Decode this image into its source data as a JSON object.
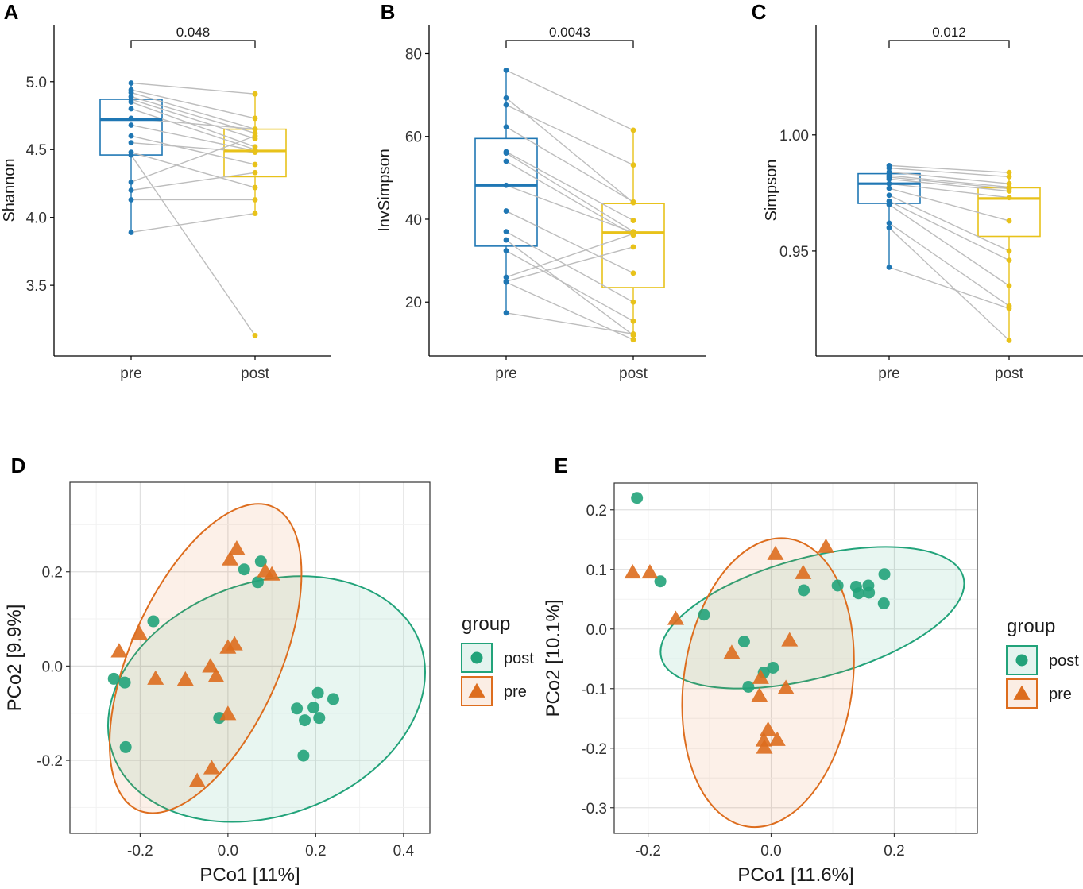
{
  "colors": {
    "pre": "#1f77b4",
    "post": "#e8c21a",
    "ord_post": "#22a37a",
    "ord_pre": "#dd6d1e",
    "paired_line": "#bdbdbd",
    "grid": "#e5e5e5"
  },
  "legend": {
    "title": "group",
    "items": [
      {
        "label": "post",
        "shape": "circle"
      },
      {
        "label": "pre",
        "shape": "triangle"
      }
    ]
  },
  "chart_data": [
    {
      "panel": "A",
      "type": "box",
      "ylabel": "Shannon",
      "ylim": [
        2.98,
        5.42
      ],
      "yticks": [
        3.5,
        4.0,
        4.5,
        5.0
      ],
      "ytick_labels": [
        "3.5",
        "4.0",
        "4.5",
        "5.0"
      ],
      "categories": [
        "pre",
        "post"
      ],
      "p_value": "0.048",
      "box": {
        "pre": {
          "q1": 4.46,
          "median": 4.72,
          "q3": 4.87,
          "whisker_low": 3.89,
          "whisker_high": 4.99
        },
        "post": {
          "q1": 4.3,
          "median": 4.49,
          "q3": 4.65,
          "whisker_low": 4.03,
          "whisker_high": 4.91
        }
      },
      "pairs": [
        [
          4.99,
          4.91
        ],
        [
          4.94,
          4.73
        ],
        [
          4.92,
          4.65
        ],
        [
          4.89,
          4.62
        ],
        [
          4.87,
          4.58
        ],
        [
          4.85,
          4.52
        ],
        [
          4.8,
          4.5
        ],
        [
          4.73,
          4.65
        ],
        [
          4.68,
          4.49
        ],
        [
          4.6,
          4.39
        ],
        [
          4.55,
          4.48
        ],
        [
          4.48,
          4.22
        ],
        [
          4.46,
          3.13
        ],
        [
          4.26,
          4.6
        ],
        [
          4.2,
          4.33
        ],
        [
          4.13,
          4.13
        ],
        [
          3.89,
          4.03
        ]
      ]
    },
    {
      "panel": "B",
      "type": "box",
      "ylabel": "InvSimpson",
      "ylim": [
        7,
        87
      ],
      "yticks": [
        20,
        40,
        60,
        80
      ],
      "ytick_labels": [
        "20",
        "40",
        "60",
        "80"
      ],
      "categories": [
        "pre",
        "post"
      ],
      "p_value": "0.0043",
      "box": {
        "pre": {
          "q1": 33.5,
          "median": 48.2,
          "q3": 59.5,
          "whisker_low": 17.4,
          "whisker_high": 76.0
        },
        "post": {
          "q1": 23.5,
          "median": 36.8,
          "q3": 43.8,
          "whisker_low": 10.9,
          "whisker_high": 61.5
        }
      },
      "pairs": [
        [
          76.0,
          61.5
        ],
        [
          69.3,
          44.0
        ],
        [
          67.6,
          53.1
        ],
        [
          62.3,
          44.2
        ],
        [
          56.3,
          39.7
        ],
        [
          56.0,
          37.0
        ],
        [
          54.0,
          36.2
        ],
        [
          48.2,
          36.8
        ],
        [
          42.0,
          27.0
        ],
        [
          37.0,
          20.0
        ],
        [
          35.0,
          12.0
        ],
        [
          32.4,
          15.4
        ],
        [
          26.0,
          36.5
        ],
        [
          25.0,
          33.3
        ],
        [
          24.8,
          10.9
        ],
        [
          17.4,
          12.3
        ]
      ]
    },
    {
      "panel": "C",
      "type": "box",
      "ylabel": "Simpson",
      "ylim": [
        0.9048,
        1.0475
      ],
      "yticks": [
        0.95,
        1.0
      ],
      "ytick_labels": [
        "0.95",
        "1.00"
      ],
      "categories": [
        "pre",
        "post"
      ],
      "p_value": "0.012",
      "box": {
        "pre": {
          "q1": 0.9705,
          "median": 0.979,
          "q3": 0.9833,
          "whisker_low": 0.943,
          "whisker_high": 0.9868
        },
        "post": {
          "q1": 0.9563,
          "median": 0.9726,
          "q3": 0.9772,
          "whisker_low": 0.9115,
          "whisker_high": 0.9838
        }
      },
      "pairs": [
        [
          0.9868,
          0.9838
        ],
        [
          0.9857,
          0.982
        ],
        [
          0.984,
          0.979
        ],
        [
          0.9825,
          0.9775
        ],
        [
          0.9818,
          0.9768
        ],
        [
          0.981,
          0.9758
        ],
        [
          0.979,
          0.973
        ],
        [
          0.977,
          0.963
        ],
        [
          0.974,
          0.95
        ],
        [
          0.9715,
          0.946
        ],
        [
          0.97,
          0.935
        ],
        [
          0.962,
          0.9263
        ],
        [
          0.96,
          0.9115
        ],
        [
          0.943,
          0.9252
        ]
      ]
    },
    {
      "panel": "D",
      "type": "scatter",
      "xlabel": "PCo1 [11%]",
      "ylabel": "PCo2 [9.9%]",
      "xlim": [
        -0.36,
        0.46
      ],
      "ylim": [
        -0.355,
        0.39
      ],
      "xticks": [
        -0.2,
        0.0,
        0.2,
        0.4
      ],
      "xtick_labels": [
        "-0.2",
        "0.0",
        "0.2",
        "0.4"
      ],
      "yticks": [
        -0.2,
        0.0,
        0.2
      ],
      "ytick_labels": [
        "-0.2",
        "0.0",
        "0.2"
      ],
      "series": [
        {
          "name": "post",
          "marker": "circle",
          "points": [
            [
              -0.26,
              -0.027
            ],
            [
              -0.235,
              -0.035
            ],
            [
              -0.17,
              0.095
            ],
            [
              0.037,
              0.205
            ],
            [
              0.075,
              0.222
            ],
            [
              0.068,
              0.178
            ],
            [
              -0.02,
              -0.11
            ],
            [
              -0.233,
              -0.172
            ],
            [
              0.157,
              -0.09
            ],
            [
              0.175,
              -0.115
            ],
            [
              0.195,
              -0.088
            ],
            [
              0.205,
              -0.057
            ],
            [
              0.208,
              -0.11
            ],
            [
              0.24,
              -0.07
            ],
            [
              0.172,
              -0.19
            ]
          ]
        },
        {
          "name": "pre",
          "marker": "triangle",
          "points": [
            [
              -0.248,
              0.03
            ],
            [
              -0.202,
              0.068
            ],
            [
              -0.165,
              -0.028
            ],
            [
              -0.097,
              -0.03
            ],
            [
              -0.04,
              -0.002
            ],
            [
              -0.027,
              -0.023
            ],
            [
              0.0,
              0.038
            ],
            [
              0.015,
              0.045
            ],
            [
              0.0,
              -0.103
            ],
            [
              -0.07,
              -0.245
            ],
            [
              -0.037,
              -0.218
            ],
            [
              0.005,
              0.225
            ],
            [
              0.02,
              0.248
            ],
            [
              0.085,
              0.2
            ],
            [
              0.1,
              0.193
            ]
          ]
        }
      ],
      "ellipses": [
        {
          "group": "post",
          "center": [
            0.088,
            -0.07
          ],
          "rx": 0.372,
          "ry": 0.247,
          "rotation_deg": -20
        },
        {
          "group": "pre",
          "center": [
            -0.051,
            0.016
          ],
          "rx": 0.17,
          "ry": 0.352,
          "rotation_deg": 24
        }
      ]
    },
    {
      "panel": "E",
      "type": "scatter",
      "xlabel": "PCo1 [11.6%]",
      "ylabel": "PCo2 [10.1%]",
      "xlim": [
        -0.255,
        0.335
      ],
      "ylim": [
        -0.343,
        0.245
      ],
      "xticks": [
        -0.2,
        0.0,
        0.2
      ],
      "xtick_labels": [
        "-0.2",
        "0.0",
        "0.2"
      ],
      "yticks": [
        -0.3,
        -0.2,
        -0.1,
        0.0,
        0.1,
        0.2
      ],
      "ytick_labels": [
        "-0.3",
        "-0.2",
        "-0.1",
        "0.0",
        "0.1",
        "0.2"
      ],
      "series": [
        {
          "name": "post",
          "marker": "circle",
          "points": [
            [
              -0.218,
              0.22
            ],
            [
              -0.18,
              0.08
            ],
            [
              -0.109,
              0.024
            ],
            [
              -0.044,
              -0.021
            ],
            [
              -0.012,
              -0.073
            ],
            [
              0.003,
              -0.065
            ],
            [
              -0.037,
              -0.097
            ],
            [
              0.053,
              0.065
            ],
            [
              0.108,
              0.073
            ],
            [
              0.138,
              0.071
            ],
            [
              0.142,
              0.06
            ],
            [
              0.158,
              0.073
            ],
            [
              0.159,
              0.061
            ],
            [
              0.184,
              0.092
            ],
            [
              0.183,
              0.043
            ]
          ]
        },
        {
          "name": "pre",
          "marker": "triangle",
          "points": [
            [
              -0.225,
              0.094
            ],
            [
              -0.197,
              0.094
            ],
            [
              -0.155,
              0.016
            ],
            [
              -0.064,
              -0.041
            ],
            [
              -0.017,
              -0.083
            ],
            [
              -0.019,
              -0.113
            ],
            [
              0.024,
              -0.1
            ],
            [
              0.007,
              0.125
            ],
            [
              0.052,
              0.093
            ],
            [
              0.089,
              0.137
            ],
            [
              0.03,
              -0.02
            ],
            [
              -0.005,
              -0.17
            ],
            [
              -0.012,
              -0.188
            ],
            [
              0.01,
              -0.187
            ],
            [
              -0.011,
              -0.2
            ]
          ]
        }
      ],
      "ellipses": [
        {
          "group": "post",
          "center": [
            0.067,
            0.019
          ],
          "rx": 0.254,
          "ry": 0.101,
          "rotation_deg": -15
        },
        {
          "group": "pre",
          "center": [
            -0.005,
            -0.09
          ],
          "rx": 0.137,
          "ry": 0.244,
          "rotation_deg": 8
        }
      ]
    }
  ]
}
